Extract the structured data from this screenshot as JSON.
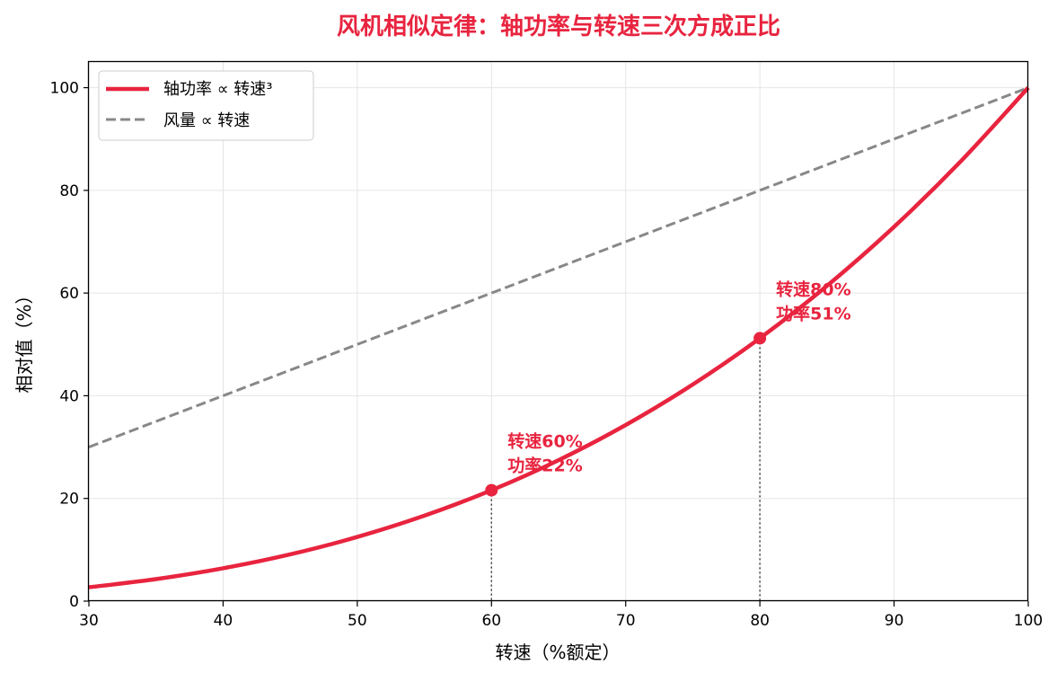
{
  "chart_data": {
    "type": "line",
    "title": "风机相似定律：轴功率与转速三次方成正比",
    "xlabel": "转速（%额定）",
    "ylabel": "相对值（%）",
    "xlim": [
      30,
      100
    ],
    "ylim": [
      0,
      105
    ],
    "xticks": [
      "30",
      "40",
      "50",
      "60",
      "70",
      "80",
      "90",
      "100"
    ],
    "yticks": [
      "0",
      "20",
      "40",
      "60",
      "80",
      "100"
    ],
    "grid": true,
    "legend_position": "top-left",
    "series": [
      {
        "name": "轴功率 ∝ 转速³",
        "color": "#e8243f",
        "style": "solid",
        "x": [
          30,
          35,
          40,
          45,
          50,
          55,
          60,
          65,
          70,
          75,
          80,
          85,
          90,
          95,
          100
        ],
        "y": [
          2.7,
          4.29,
          6.4,
          9.11,
          12.5,
          16.64,
          21.6,
          27.46,
          34.3,
          42.19,
          51.2,
          61.41,
          72.9,
          85.74,
          100
        ]
      },
      {
        "name": "风量 ∝ 转速",
        "color": "#888888",
        "style": "dashed",
        "x": [
          30,
          100
        ],
        "y": [
          30,
          100
        ]
      }
    ],
    "markers": [
      {
        "x": 60,
        "y": 21.6,
        "line1": "转速60%",
        "line2": "功率22%"
      },
      {
        "x": 80,
        "y": 51.2,
        "line1": "转速80%",
        "line2": "功率51%"
      }
    ]
  }
}
